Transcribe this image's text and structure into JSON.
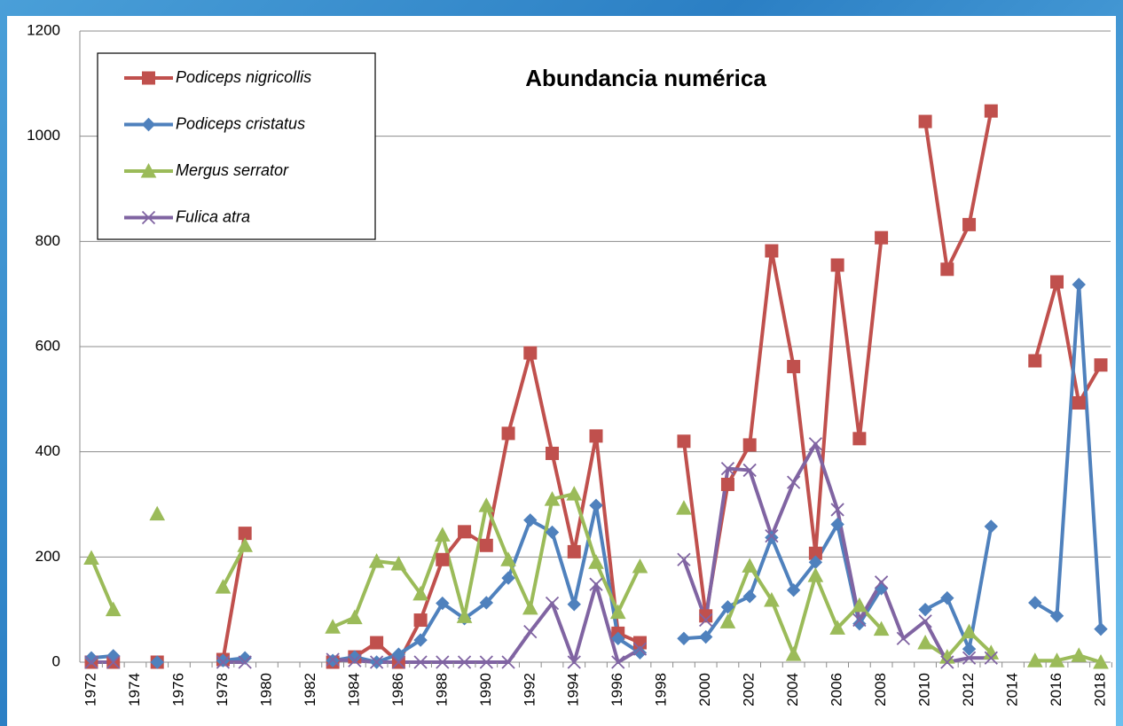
{
  "chart_data": {
    "type": "line",
    "title": "Abundancia numérica",
    "categories": [
      "1972",
      null,
      "1974",
      null,
      "1976",
      null,
      "1978",
      null,
      "1980",
      null,
      "1982",
      null,
      "1984",
      null,
      "1986",
      null,
      "1988",
      null,
      "1990",
      null,
      "1992",
      null,
      "1994",
      null,
      "1996",
      null,
      "1998",
      null,
      "2000",
      null,
      "2002",
      null,
      "2004",
      null,
      "2006",
      null,
      "2008",
      null,
      "2010",
      null,
      "2012",
      null,
      "2014",
      null,
      "2016",
      null,
      "2018"
    ],
    "series": [
      {
        "name": "Podiceps nigricollis",
        "color": "#c0504d",
        "marker": "square",
        "values": [
          0,
          0,
          null,
          0,
          null,
          null,
          5,
          245,
          null,
          null,
          null,
          0,
          10,
          37,
          0,
          80,
          195,
          248,
          222,
          435,
          588,
          397,
          210,
          430,
          55,
          37,
          null,
          420,
          88,
          338,
          413,
          782,
          562,
          207,
          755,
          425,
          807,
          null,
          1028,
          747,
          832,
          1048,
          null,
          573,
          723,
          493,
          565
        ]
      },
      {
        "name": "Podiceps cristatus",
        "color": "#4f81bd",
        "marker": "diamond",
        "values": [
          8,
          12,
          null,
          0,
          null,
          null,
          3,
          8,
          null,
          null,
          null,
          3,
          10,
          0,
          15,
          42,
          112,
          83,
          113,
          160,
          270,
          247,
          110,
          298,
          45,
          18,
          null,
          45,
          48,
          105,
          125,
          237,
          137,
          190,
          262,
          73,
          140,
          null,
          100,
          122,
          25,
          258,
          null,
          113,
          88,
          718,
          63
        ]
      },
      {
        "name": "Mergus serrator",
        "color": "#9bbb59",
        "marker": "triangle",
        "values": [
          198,
          100,
          null,
          282,
          null,
          null,
          143,
          222,
          null,
          null,
          null,
          67,
          85,
          192,
          187,
          130,
          242,
          87,
          298,
          195,
          103,
          310,
          320,
          190,
          95,
          182,
          null,
          293,
          null,
          77,
          183,
          118,
          15,
          165,
          65,
          108,
          63,
          null,
          37,
          10,
          58,
          18,
          null,
          3,
          3,
          13,
          0
        ]
      },
      {
        "name": "Fulica atra",
        "color": "#8064a2",
        "marker": "x",
        "values": [
          0,
          0,
          null,
          null,
          null,
          null,
          0,
          0,
          null,
          null,
          null,
          5,
          3,
          0,
          0,
          0,
          0,
          0,
          0,
          0,
          58,
          112,
          0,
          148,
          0,
          25,
          null,
          195,
          80,
          368,
          365,
          240,
          342,
          415,
          290,
          80,
          152,
          45,
          78,
          0,
          8,
          8,
          null,
          null,
          null,
          null,
          null
        ]
      }
    ],
    "ylim": [
      0,
      1200
    ],
    "yticks": [
      0,
      200,
      400,
      600,
      800,
      1000,
      1200
    ],
    "grid": true,
    "legend": "top-left"
  }
}
